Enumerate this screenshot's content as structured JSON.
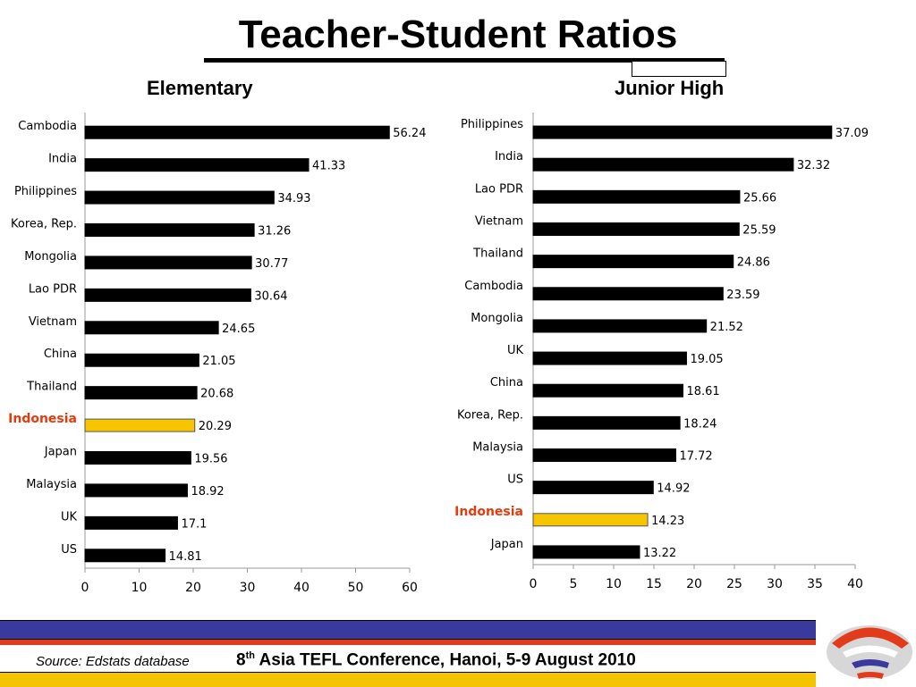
{
  "title": "Teacher-Student Ratios",
  "footer": {
    "source": "Source: Edstats database",
    "conference_ordinal": "8",
    "conference_sup": "th",
    "conference_rest": " Asia TEFL Conference, Hanoi, 5-9 August 2010"
  },
  "colors": {
    "bar": "#000000",
    "highlight_bar": "#f7c500",
    "highlight_text": "#e63b0c",
    "blue_band": "#3a3a9e",
    "red_band": "#e23b1c"
  },
  "chart_data": [
    {
      "type": "bar",
      "orientation": "horizontal",
      "title": "Elementary",
      "categories": [
        "Cambodia",
        "India",
        "Philippines",
        "Korea, Rep.",
        "Mongolia",
        "Lao PDR",
        "Vietnam",
        "China",
        "Thailand",
        "Indonesia",
        "Japan",
        "Malaysia",
        "UK",
        "US"
      ],
      "values": [
        56.24,
        41.33,
        34.93,
        31.26,
        30.77,
        30.64,
        24.65,
        21.05,
        20.68,
        20.29,
        19.56,
        18.92,
        17.1,
        14.81
      ],
      "value_labels": [
        "56.24",
        "41.33",
        "34.93",
        "31.26",
        "30.77",
        "30.64",
        "24.65",
        "21.05",
        "20.68",
        "20.29",
        "19.56",
        "18.92",
        "17.1",
        "14.81"
      ],
      "highlight": "Indonesia",
      "xlim": [
        0,
        60
      ],
      "xticks": [
        0,
        10,
        20,
        30,
        40,
        50,
        60
      ]
    },
    {
      "type": "bar",
      "orientation": "horizontal",
      "title": "Junior High",
      "categories": [
        "Philippines",
        "India",
        "Lao PDR",
        "Vietnam",
        "Thailand",
        "Cambodia",
        "Mongolia",
        "UK",
        "China",
        "Korea, Rep.",
        "Malaysia",
        "US",
        "Indonesia",
        "Japan"
      ],
      "values": [
        37.09,
        32.32,
        25.66,
        25.59,
        24.86,
        23.59,
        21.52,
        19.05,
        18.61,
        18.24,
        17.72,
        14.92,
        14.23,
        13.22
      ],
      "value_labels": [
        "37.09",
        "32.32",
        "25.66",
        "25.59",
        "24.86",
        "23.59",
        "21.52",
        "19.05",
        "18.61",
        "18.24",
        "17.72",
        "14.92",
        "14.23",
        "13.22"
      ],
      "highlight": "Indonesia",
      "xlim": [
        0,
        40
      ],
      "xticks": [
        0,
        5,
        10,
        15,
        20,
        25,
        30,
        35,
        40
      ]
    }
  ]
}
